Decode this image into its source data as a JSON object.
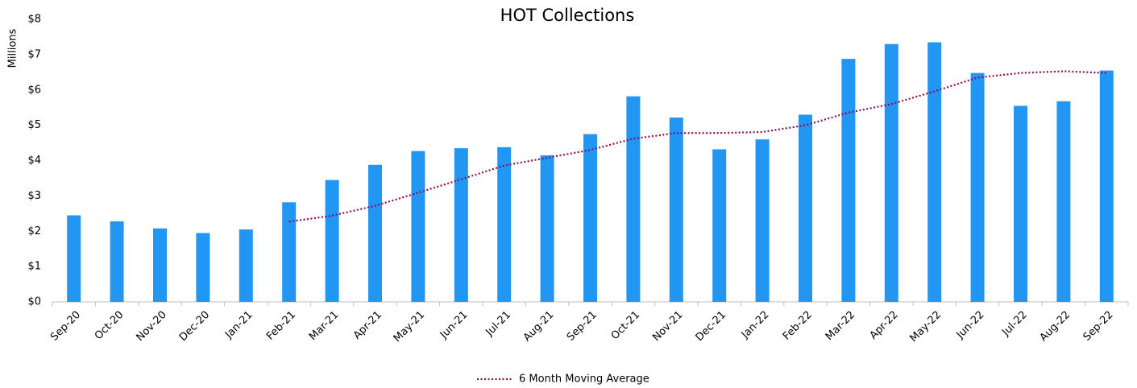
{
  "chart_data": {
    "type": "bar",
    "title": "HOT Collections",
    "y_label": "Millions",
    "categories": [
      "Sep-20",
      "Oct-20",
      "Nov-20",
      "Dec-20",
      "Jan-21",
      "Feb-21",
      "Mar-21",
      "Apr-21",
      "May-21",
      "Jun-21",
      "Jul-21",
      "Aug-21",
      "Sep-21",
      "Oct-21",
      "Nov-21",
      "Dec-21",
      "Jan-22",
      "Feb-22",
      "Mar-22",
      "Apr-22",
      "May-22",
      "Jun-22",
      "Jul-22",
      "Aug-22",
      "Sep-22"
    ],
    "series": [
      {
        "type": "bar",
        "color": "#2196f3",
        "values": [
          2.45,
          2.28,
          2.08,
          1.95,
          2.05,
          2.82,
          3.45,
          3.88,
          4.27,
          4.35,
          4.38,
          4.15,
          4.75,
          5.82,
          5.22,
          4.32,
          4.6,
          5.3,
          6.88,
          7.3,
          7.35,
          6.48,
          5.55,
          5.68,
          6.55
        ]
      },
      {
        "type": "line",
        "name": "6 Month Moving Average",
        "color": "#8e0b5b",
        "values": [
          null,
          null,
          null,
          null,
          null,
          2.27,
          2.44,
          2.72,
          3.09,
          3.47,
          3.86,
          4.08,
          4.3,
          4.62,
          4.78,
          4.78,
          4.81,
          5.0,
          5.36,
          5.6,
          5.96,
          6.35,
          6.48,
          6.53,
          6.48
        ]
      }
    ],
    "ylim": [
      0,
      8
    ],
    "yticks": [
      {
        "value": 0,
        "label": "$0"
      },
      {
        "value": 1,
        "label": "$1"
      },
      {
        "value": 2,
        "label": "$2"
      },
      {
        "value": 3,
        "label": "$3"
      },
      {
        "value": 4,
        "label": "$4"
      },
      {
        "value": 5,
        "label": "$5"
      },
      {
        "value": 6,
        "label": "$6"
      },
      {
        "value": 7,
        "label": "$7"
      },
      {
        "value": 8,
        "label": "$8"
      }
    ],
    "legend": "bottom"
  }
}
